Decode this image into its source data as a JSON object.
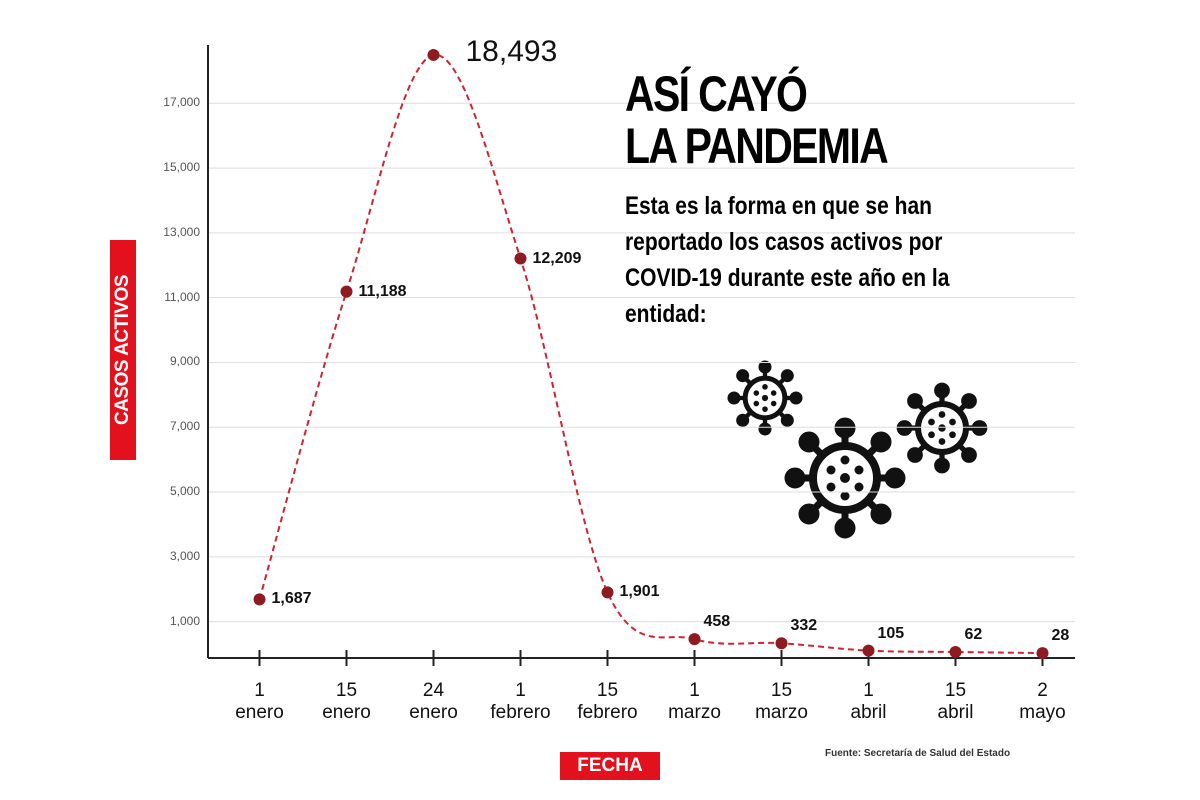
{
  "chart_data": {
    "type": "line",
    "title": "ASÍ CAYÓ\nLA PANDEMIA",
    "subtitle": "Esta es la forma en que se han reportado los casos activos por COVID-19 durante este año en la entidad:",
    "y_label": "CASOS ACTIVOS",
    "x_label": "FECHA",
    "source": "Fuente: Secretaría de Salud del Estado",
    "categories": [
      "1\nenero",
      "15\nenero",
      "24\nenero",
      "1\nfebrero",
      "15\nfebrero",
      "1\nmarzo",
      "15\nmarzo",
      "1\nabril",
      "15\nabril",
      "2\nmayo"
    ],
    "values": [
      1687,
      11188,
      18493,
      12209,
      1901,
      458,
      332,
      105,
      62,
      28
    ],
    "value_labels": [
      "1,687",
      "11,188",
      "18,493",
      "12,209",
      "1,901",
      "458",
      "332",
      "105",
      "62",
      "28"
    ],
    "color": "#d0232f",
    "marker_color": "#8e1b22",
    "label_color": "#e3101d",
    "ylim": [
      0,
      18800
    ],
    "yticks": [
      {
        "value": 1000,
        "label": "1,000"
      },
      {
        "value": 3000,
        "label": "3,000"
      },
      {
        "value": 5000,
        "label": "5,000"
      },
      {
        "value": 7000,
        "label": "7,000"
      },
      {
        "value": 9000,
        "label": "9,000"
      },
      {
        "value": 11000,
        "label": "11,000"
      },
      {
        "value": 13000,
        "label": "13,000"
      },
      {
        "value": 15000,
        "label": "15,000"
      },
      {
        "value": 17000,
        "label": "17,000"
      }
    ],
    "grid": true
  }
}
